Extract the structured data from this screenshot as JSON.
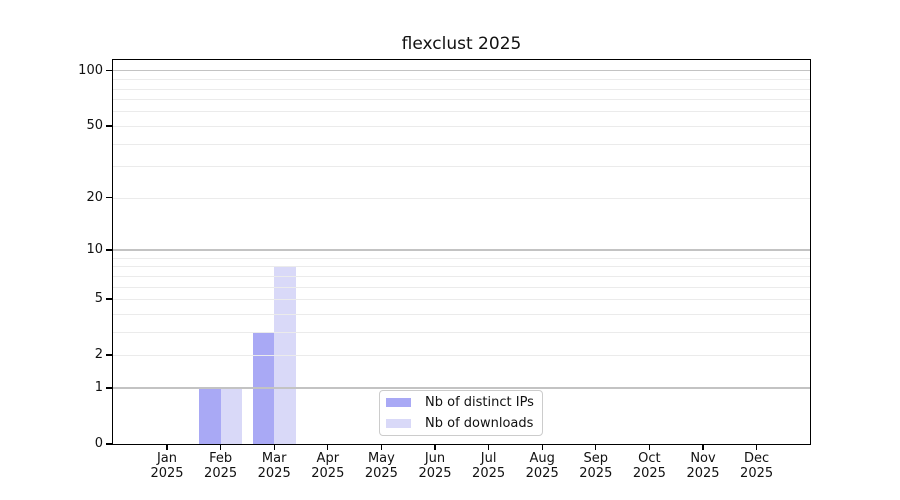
{
  "chart_data": {
    "type": "bar",
    "title": "flexclust 2025",
    "x": {
      "months": [
        "Jan",
        "Feb",
        "Mar",
        "Apr",
        "May",
        "Jun",
        "Jul",
        "Aug",
        "Sep",
        "Oct",
        "Nov",
        "Dec"
      ],
      "year": "2025"
    },
    "series": [
      {
        "name": "Nb of distinct IPs",
        "color": "#a9a9f5",
        "values": [
          0,
          1,
          3,
          0,
          0,
          0,
          0,
          0,
          0,
          0,
          0,
          0
        ]
      },
      {
        "name": "Nb of downloads",
        "color": "#d9d9f8",
        "values": [
          0,
          1,
          8,
          0,
          0,
          0,
          0,
          0,
          0,
          0,
          0,
          0
        ]
      }
    ],
    "y_axis": {
      "scale": "log1p",
      "tick_labels": [
        "0",
        "1",
        "2",
        "5",
        "10",
        "20",
        "50",
        "100"
      ],
      "tick_values": [
        0,
        1,
        2,
        5,
        10,
        20,
        50,
        100
      ],
      "max_value": 114.3,
      "major_gridlines": [
        1,
        10,
        100
      ],
      "minor_gridlines": [
        2,
        3,
        4,
        5,
        6,
        7,
        8,
        9,
        20,
        30,
        40,
        50,
        60,
        70,
        80,
        90
      ]
    },
    "legend_position": "inside-bottom-center",
    "grid": true,
    "colors": {
      "axis": "#000000",
      "text": "#111111",
      "grid_major": "#c3c3c3",
      "grid_minor": "#ebebeb",
      "legend_border": "#cccccc",
      "legend_background": "#ffffff",
      "plot_background": "#ffffff"
    }
  }
}
